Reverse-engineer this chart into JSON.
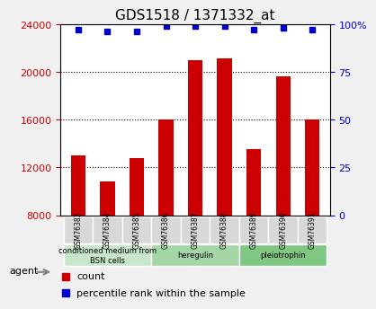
{
  "title": "GDS1518 / 1371332_at",
  "categories": [
    "GSM76383",
    "GSM76384",
    "GSM76385",
    "GSM76386",
    "GSM76387",
    "GSM76388",
    "GSM76389",
    "GSM76390",
    "GSM76391"
  ],
  "bar_values": [
    13000,
    10800,
    12800,
    16000,
    21000,
    21100,
    13500,
    19600,
    16000
  ],
  "percentile_values": [
    97,
    96,
    96,
    99,
    99,
    99,
    97,
    98,
    97
  ],
  "bar_color": "#cc0000",
  "dot_color": "#0000cc",
  "ylim_left": [
    8000,
    24000
  ],
  "yticks_left": [
    8000,
    12000,
    16000,
    20000,
    24000
  ],
  "ylim_right": [
    0,
    100
  ],
  "yticks_right": [
    0,
    25,
    50,
    75,
    100
  ],
  "groups": [
    {
      "label": "conditioned medium from\nBSN cells",
      "start": 0,
      "end": 3,
      "color": "#c8e6c9"
    },
    {
      "label": "heregulin",
      "start": 3,
      "end": 6,
      "color": "#a5d6a7"
    },
    {
      "label": "pleiotrophin",
      "start": 6,
      "end": 9,
      "color": "#81c784"
    }
  ],
  "agent_label": "agent",
  "legend_count_label": "count",
  "legend_pct_label": "percentile rank within the sample",
  "bg_color": "#f0f0f0",
  "plot_bg": "#ffffff",
  "grid_color": "#000000",
  "tick_label_color_left": "#cc0000",
  "tick_label_color_right": "#0000cc"
}
